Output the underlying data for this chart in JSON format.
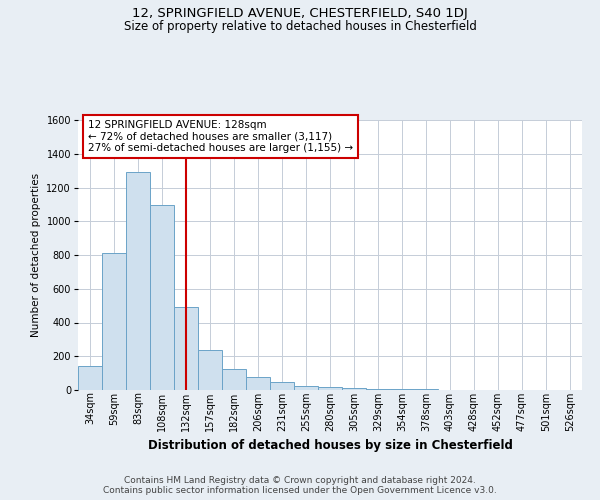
{
  "title1": "12, SPRINGFIELD AVENUE, CHESTERFIELD, S40 1DJ",
  "title2": "Size of property relative to detached houses in Chesterfield",
  "xlabel": "Distribution of detached houses by size in Chesterfield",
  "ylabel": "Number of detached properties",
  "bar_labels": [
    "34sqm",
    "59sqm",
    "83sqm",
    "108sqm",
    "132sqm",
    "157sqm",
    "182sqm",
    "206sqm",
    "231sqm",
    "255sqm",
    "280sqm",
    "305sqm",
    "329sqm",
    "354sqm",
    "378sqm",
    "403sqm",
    "428sqm",
    "452sqm",
    "477sqm",
    "501sqm",
    "526sqm"
  ],
  "bar_values": [
    140,
    810,
    1290,
    1095,
    490,
    235,
    125,
    75,
    50,
    25,
    18,
    12,
    8,
    5,
    3,
    2,
    1.5,
    1,
    1,
    1,
    1
  ],
  "bar_color": "#cfe0ee",
  "bar_edge_color": "#6ba3c8",
  "vline_x_idx": 4,
  "vline_color": "#cc0000",
  "ylim": [
    0,
    1600
  ],
  "yticks": [
    0,
    200,
    400,
    600,
    800,
    1000,
    1200,
    1400,
    1600
  ],
  "annotation_line1": "12 SPRINGFIELD AVENUE: 128sqm",
  "annotation_line2": "← 72% of detached houses are smaller (3,117)",
  "annotation_line3": "27% of semi-detached houses are larger (1,155) →",
  "footer1": "Contains HM Land Registry data © Crown copyright and database right 2024.",
  "footer2": "Contains public sector information licensed under the Open Government Licence v3.0.",
  "bg_color": "#e8eef4",
  "plot_bg_color": "#ffffff",
  "grid_color": "#c5cdd8",
  "title1_fontsize": 9.5,
  "title2_fontsize": 8.5,
  "xlabel_fontsize": 8.5,
  "ylabel_fontsize": 7.5,
  "tick_fontsize": 7,
  "annot_fontsize": 7.5,
  "footer_fontsize": 6.5
}
